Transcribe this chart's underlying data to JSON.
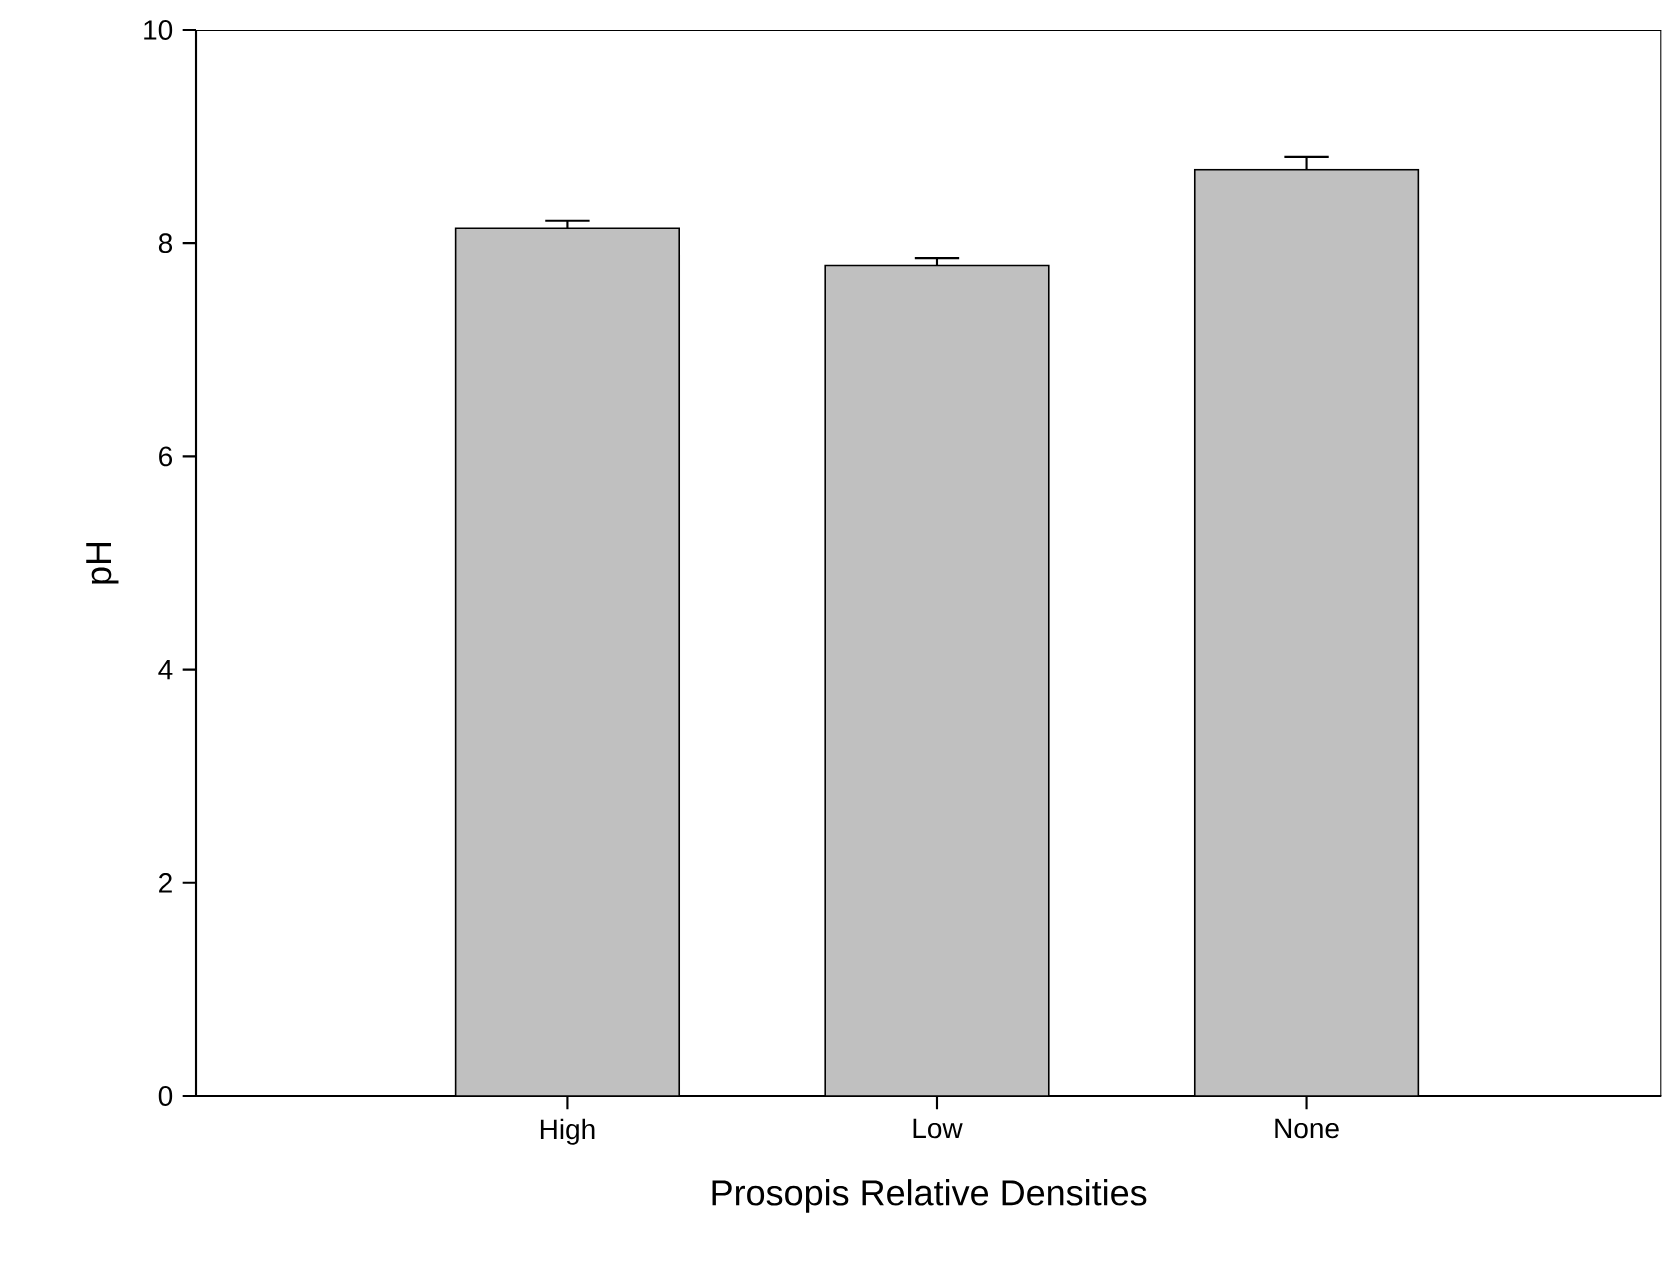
{
  "chart_data": {
    "type": "bar",
    "xlabel": "Prosopis Relative Densities",
    "ylabel": "pH",
    "categories": [
      "High",
      "Low",
      "None"
    ],
    "values": [
      8.14,
      7.79,
      8.69
    ],
    "errors": [
      [
        8.14,
        8.21
      ],
      [
        7.79,
        7.86
      ],
      [
        8.69,
        8.81
      ]
    ],
    "color": "#c0c0c0",
    "ylim": [
      0,
      10
    ],
    "yticks": [
      0,
      2,
      4,
      6,
      8,
      10
    ],
    "grid": false
  }
}
